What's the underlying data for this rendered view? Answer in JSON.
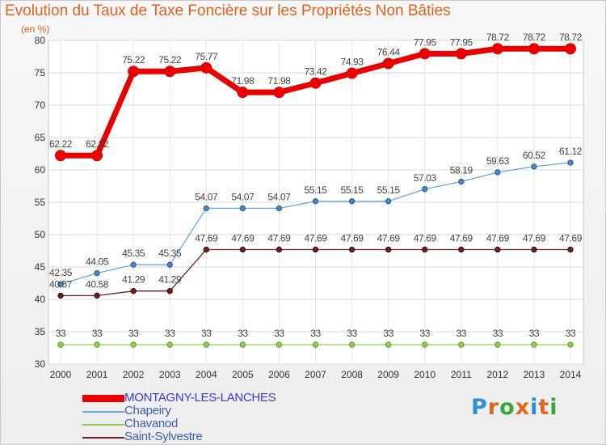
{
  "title": "Evolution du Taux de Taxe Foncière sur les Propriétés Non Bâties",
  "unit": "(en %)",
  "logo": {
    "text": "Proxiti",
    "letter_colors": [
      "#2f8fd1",
      "#e2661b",
      "#35a935",
      "#e2661b",
      "#2f8fd1",
      "#e2661b",
      "#35a935"
    ]
  },
  "chart_data": {
    "type": "line",
    "title": "Evolution du Taux de Taxe Foncière sur les Propriétés Non Bâties",
    "ylabel": "(en %)",
    "xlabel": "",
    "ylim": [
      30,
      80
    ],
    "yticks": [
      30,
      35,
      40,
      45,
      50,
      55,
      60,
      65,
      70,
      75,
      80
    ],
    "grid": true,
    "legend_position": "bottom-left",
    "x": [
      "2000",
      "2001",
      "2002",
      "2003",
      "2004",
      "2005",
      "2006",
      "2007",
      "2008",
      "2009",
      "2010",
      "2011",
      "2012",
      "2013",
      "2014"
    ],
    "series": [
      {
        "name": "MONTAGNY-LES-LANCHES",
        "color": "#e80000",
        "labels": [
          "62.22",
          "62.22",
          "75.22",
          "75.22",
          "75.77",
          "71.98",
          "71.98",
          "73.42",
          "74.93",
          "76.44",
          "77.95",
          "77.95",
          "78.72",
          "78.72",
          "78.72"
        ],
        "values": [
          62.22,
          62.22,
          75.22,
          75.22,
          75.77,
          71.98,
          71.98,
          73.42,
          74.93,
          76.44,
          77.95,
          77.95,
          78.72,
          78.72,
          78.72
        ]
      },
      {
        "name": "Chapeiry",
        "color": "#5b9bd5",
        "labels": [
          "42.35",
          "44.05",
          "45.35",
          "45.35",
          "54.07",
          "54.07",
          "54.07",
          "55.15",
          "55.15",
          "55.15",
          "57.03",
          "58.19",
          "59.63",
          "60.52",
          "61.12"
        ],
        "values": [
          42.35,
          44.05,
          45.35,
          45.35,
          54.07,
          54.07,
          54.07,
          55.15,
          55.15,
          55.15,
          57.03,
          58.19,
          59.63,
          60.52,
          61.12
        ]
      },
      {
        "name": "Chavanod",
        "color": "#8fd14f",
        "labels": [
          "33",
          "33",
          "33",
          "33",
          "33",
          "33",
          "33",
          "33",
          "33",
          "33",
          "33",
          "33",
          "33",
          "33",
          "33"
        ],
        "values": [
          33,
          33,
          33,
          33,
          33,
          33,
          33,
          33,
          33,
          33,
          33,
          33,
          33,
          33,
          33
        ]
      },
      {
        "name": "Saint-Sylvestre",
        "color": "#6b1f1f",
        "labels": [
          "40.57",
          "40.58",
          "41.29",
          "41.29",
          "47.69",
          "47.69",
          "47.69",
          "47.69",
          "47.69",
          "47.69",
          "47.69",
          "47.69",
          "47.69",
          "47.69",
          "47.69"
        ],
        "values": [
          40.57,
          40.58,
          41.29,
          41.29,
          47.69,
          47.69,
          47.69,
          47.69,
          47.69,
          47.69,
          47.69,
          47.69,
          47.69,
          47.69,
          47.69
        ]
      }
    ]
  }
}
